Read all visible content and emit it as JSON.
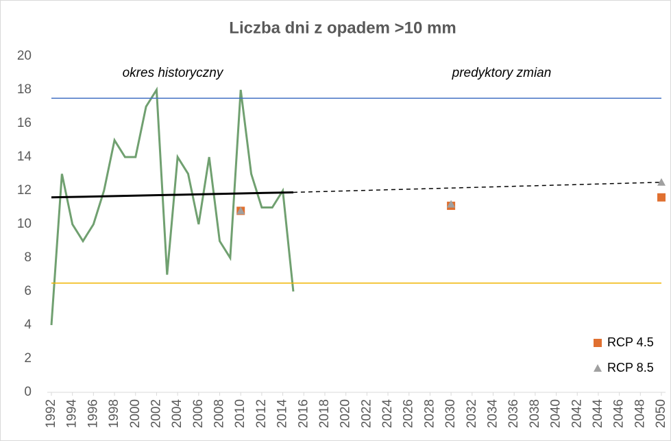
{
  "chart_data": {
    "type": "line",
    "title": "Liczba dni z opadem >10 mm",
    "annotations": [
      "okres historyczny",
      "predyktory zmian"
    ],
    "xlim": [
      1992,
      2050
    ],
    "xticks": [
      1992,
      1994,
      1996,
      1998,
      2000,
      2002,
      2004,
      2006,
      2008,
      2010,
      2012,
      2014,
      2016,
      2018,
      2020,
      2022,
      2024,
      2026,
      2028,
      2030,
      2032,
      2034,
      2036,
      2038,
      2040,
      2042,
      2044,
      2046,
      2048,
      2050
    ],
    "ylim": [
      0,
      20
    ],
    "yticks": [
      0,
      2,
      4,
      6,
      8,
      10,
      12,
      14,
      16,
      18,
      20
    ],
    "grid": false,
    "legend": "bottom-right",
    "series": [
      {
        "kind": "line",
        "color": "#70a070",
        "width": 3,
        "x": [
          1992,
          1993,
          1994,
          1995,
          1996,
          1997,
          1998,
          1999,
          2000,
          2001,
          2002,
          2003,
          2004,
          2005,
          2006,
          2007,
          2008,
          2009,
          2010,
          2011,
          2012,
          2013,
          2014,
          2015
        ],
        "values": [
          4,
          13,
          10,
          9,
          10,
          12,
          15,
          14,
          14,
          17,
          18,
          7,
          14,
          13,
          10,
          14,
          9,
          8,
          18,
          13,
          11,
          11,
          12,
          6
        ]
      },
      {
        "kind": "line",
        "color": "#4472c4",
        "width": 1.5,
        "x": [
          1992,
          2050
        ],
        "values": [
          17.5,
          17.5
        ]
      },
      {
        "kind": "line",
        "color": "#f0b400",
        "width": 1.5,
        "x": [
          1992,
          2050
        ],
        "values": [
          6.5,
          6.5
        ]
      },
      {
        "kind": "line",
        "color": "#000000",
        "width": 3,
        "x": [
          1992,
          2015
        ],
        "values": [
          11.6,
          11.9
        ]
      },
      {
        "kind": "line",
        "color": "#000000",
        "width": 1.5,
        "dash": true,
        "x": [
          2015,
          2050
        ],
        "values": [
          11.9,
          12.5
        ]
      },
      {
        "kind": "scatter",
        "name": "RCP 4.5",
        "marker": "square",
        "color": "#e07030",
        "x": [
          2010,
          2030,
          2050
        ],
        "values": [
          10.8,
          11.1,
          11.6
        ]
      },
      {
        "kind": "scatter",
        "name": "RCP 8.5",
        "marker": "triangle",
        "color": "#a0a0a0",
        "x": [
          2010,
          2030,
          2050
        ],
        "values": [
          10.8,
          11.2,
          12.5
        ]
      }
    ]
  }
}
